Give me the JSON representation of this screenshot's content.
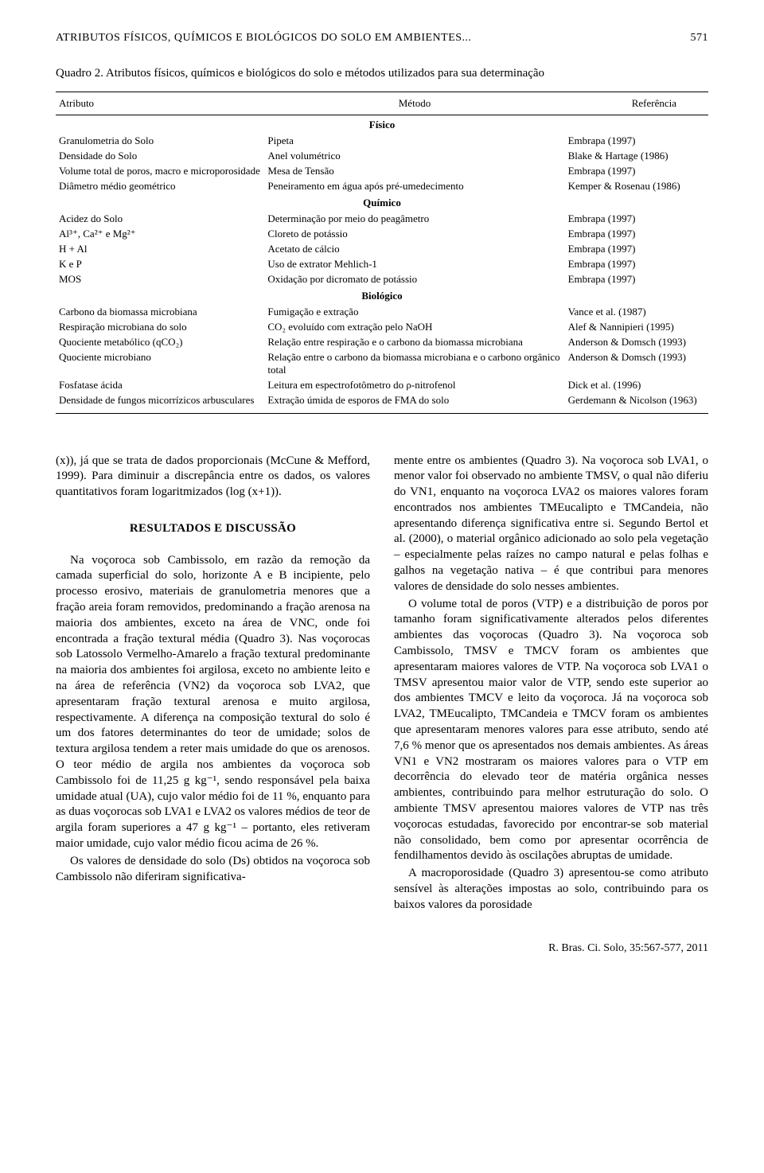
{
  "runningHead": {
    "title": "ATRIBUTOS FÍSICOS, QUÍMICOS E BIOLÓGICOS DO SOLO EM AMBIENTES...",
    "pageNum": "571"
  },
  "tableCaption": "Quadro 2. Atributos físicos, químicos e biológicos do solo e métodos utilizados para sua determinação",
  "tableHeaders": [
    "Atributo",
    "Método",
    "Referência"
  ],
  "sections": [
    {
      "name": "Físico",
      "rows": [
        [
          "Granulometria do Solo",
          "Pipeta",
          "Embrapa (1997)"
        ],
        [
          "Densidade do Solo",
          "Anel volumétrico",
          "Blake & Hartage (1986)"
        ],
        [
          "Volume total de poros, macro e microporosidade",
          "Mesa de Tensão",
          "Embrapa (1997)"
        ],
        [
          "Diâmetro médio geométrico",
          "Peneiramento em água após pré-umedecimento",
          "Kemper & Rosenau (1986)"
        ]
      ]
    },
    {
      "name": "Químico",
      "rows": [
        [
          "Acidez do Solo",
          "Determinação por meio do peagâmetro",
          "Embrapa (1997)"
        ],
        [
          "Al³⁺, Ca²⁺ e Mg²⁺",
          "Cloreto de potássio",
          "Embrapa (1997)"
        ],
        [
          "H + Al",
          "Acetato de cálcio",
          "Embrapa (1997)"
        ],
        [
          "K e P",
          "Uso de extrator Mehlich-1",
          "Embrapa (1997)"
        ],
        [
          "MOS",
          "Oxidação por dicromato de potássio",
          "Embrapa (1997)"
        ]
      ]
    },
    {
      "name": "Biológico",
      "rows": [
        [
          "Carbono da biomassa microbiana",
          "Fumigação e extração",
          "Vance et al. (1987)"
        ],
        [
          "Respiração microbiana do solo",
          "CO₂ evoluído com extração pelo NaOH",
          "Alef & Nannipieri (1995)"
        ],
        [
          "Quociente metabólico (qCO₂)",
          "Relação entre respiração e o carbono da biomassa microbiana",
          "Anderson & Domsch (1993)"
        ],
        [
          "Quociente microbiano",
          "Relação entre o carbono da biomassa microbiana e o carbono orgânico total",
          "Anderson & Domsch (1993)"
        ],
        [
          "Fosfatase ácida",
          "Leitura em espectrofotômetro do ρ-nitrofenol",
          "Dick et al. (1996)"
        ],
        [
          "Densidade de fungos micorrízicos arbusculares",
          "Extração úmida de esporos de FMA do solo",
          "Gerdemann & Nicolson (1963)"
        ]
      ]
    }
  ],
  "leftCol": {
    "p1": "(x)), já que se trata de dados proporcionais (McCune & Mefford, 1999). Para diminuir a discrepância entre os dados, os valores quantitativos foram logaritmizados (log (x+1)).",
    "heading": "RESULTADOS E DISCUSSÃO",
    "p2": "Na voçoroca sob Cambissolo, em razão da remoção da camada superficial do solo, horizonte A e B incipiente, pelo processo erosivo, materiais de granulometria menores que a fração areia foram removidos, predominando a fração arenosa na maioria dos ambientes, exceto na área de VNC, onde foi encontrada a fração textural média (Quadro 3). Nas voçorocas sob Latossolo Vermelho-Amarelo a fração textural predominante na maioria dos ambientes foi argilosa, exceto no ambiente leito e na área de referência (VN2) da voçoroca sob LVA2, que apresentaram fração textural arenosa e muito argilosa, respectivamente. A diferença na composição textural do solo é um dos fatores determinantes do teor de umidade; solos de textura argilosa tendem a reter mais umidade do que os arenosos. O teor médio de argila nos ambientes da voçoroca sob Cambissolo foi de 11,25 g kg⁻¹, sendo responsável pela baixa umidade atual (UA), cujo valor médio foi de 11 %, enquanto para as duas voçorocas sob LVA1 e LVA2 os valores médios de teor de argila foram superiores a 47 g kg⁻¹ – portanto, eles retiveram maior umidade, cujo valor médio ficou acima de 26 %.",
    "p3": "Os valores de densidade do solo (Ds) obtidos na voçoroca sob Cambissolo não diferiram significativa-"
  },
  "rightCol": {
    "p1": "mente entre os ambientes (Quadro 3). Na voçoroca sob LVA1, o menor valor foi observado no ambiente TMSV, o qual não diferiu do VN1, enquanto na voçoroca LVA2 os maiores valores foram encontrados nos ambientes TMEucalipto e TMCandeia, não apresentando diferença significativa entre si. Segundo Bertol et al. (2000), o material orgânico adicionado ao solo pela vegetação – especialmente pelas raízes no campo natural e pelas folhas e galhos na vegetação nativa – é que contribui para menores valores de densidade do solo nesses ambientes.",
    "p2": "O volume total de poros (VTP) e a distribuição de poros por tamanho foram significativamente alterados pelos diferentes ambientes das voçorocas (Quadro 3). Na voçoroca sob Cambissolo, TMSV e TMCV foram os ambientes que apresentaram maiores valores de VTP. Na voçoroca sob LVA1 o TMSV apresentou maior valor de VTP, sendo este superior ao dos ambientes TMCV e leito da voçoroca. Já na voçoroca sob LVA2, TMEucalipto, TMCandeia e TMCV foram os ambientes que apresentaram menores valores para esse atributo, sendo até 7,6 % menor que os apresentados nos demais ambientes. As áreas VN1 e VN2 mostraram os maiores valores para o VTP em decorrência do elevado teor de matéria orgânica nesses ambientes, contribuindo para melhor estruturação do solo. O ambiente TMSV apresentou maiores valores de VTP nas três voçorocas estudadas, favorecido por encontrar-se sob material não consolidado, bem como por apresentar ocorrência de fendilhamentos devido às oscilações abruptas de umidade.",
    "p3": "A macroporosidade (Quadro 3) apresentou-se como atributo sensível às alterações impostas ao solo, contribuindo para os baixos valores da porosidade"
  },
  "footer": "R. Bras. Ci. Solo, 35:567-577, 2011"
}
